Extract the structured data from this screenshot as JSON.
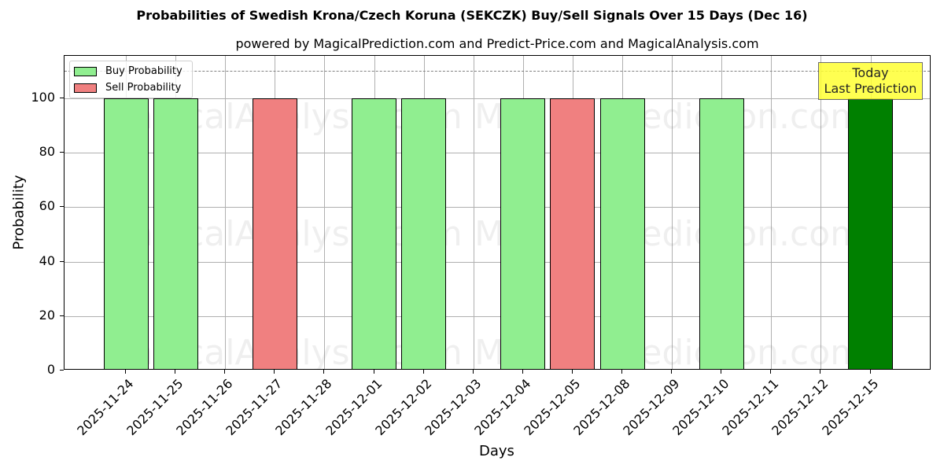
{
  "title": "Probabilities of Swedish Krona/Czech Koruna (SEKCZK) Buy/Sell Signals Over 15 Days (Dec 16)",
  "subtitle": "powered by MagicalPrediction.com and Predict-Price.com and MagicalAnalysis.com",
  "watermarks": [
    "MagicalAnalysis.com",
    "MagicalPrediction.com"
  ],
  "annotation": {
    "line1": "Today",
    "line2": "Last Prediction"
  },
  "colors": {
    "buy": "#90ee90",
    "sell": "#f08080",
    "today": "#008000",
    "annotation_bg": "#ffff33"
  },
  "chart_data": {
    "type": "bar",
    "title": "Probabilities of Swedish Krona/Czech Koruna (SEKCZK) Buy/Sell Signals Over 15 Days (Dec 16)",
    "subtitle": "powered by MagicalPrediction.com and Predict-Price.com and MagicalAnalysis.com",
    "xlabel": "Days",
    "ylabel": "Probability",
    "ylim": [
      0,
      115.6
    ],
    "yticks": [
      0,
      20,
      40,
      60,
      80,
      100
    ],
    "grid": true,
    "legend_position": "upper left",
    "reference_line": {
      "y": 110,
      "style": "dashed",
      "color": "#808080"
    },
    "categories": [
      "2025-11-24",
      "2025-11-25",
      "2025-11-26",
      "2025-11-27",
      "2025-11-28",
      "2025-12-01",
      "2025-12-02",
      "2025-12-03",
      "2025-12-04",
      "2025-12-05",
      "2025-12-08",
      "2025-12-09",
      "2025-12-10",
      "2025-12-11",
      "2025-12-12",
      "2025-12-15"
    ],
    "series": [
      {
        "name": "Buy Probability",
        "color": "#90ee90",
        "values": [
          100,
          100,
          0,
          0,
          0,
          100,
          100,
          0,
          100,
          0,
          100,
          0,
          100,
          0,
          0,
          100
        ]
      },
      {
        "name": "Sell Probability",
        "color": "#f08080",
        "values": [
          0,
          0,
          0,
          100,
          0,
          0,
          0,
          0,
          0,
          100,
          0,
          0,
          0,
          0,
          0,
          0
        ]
      }
    ],
    "highlight": {
      "category": "2025-12-15",
      "label": "Today\nLast Prediction",
      "color": "#008000"
    }
  }
}
